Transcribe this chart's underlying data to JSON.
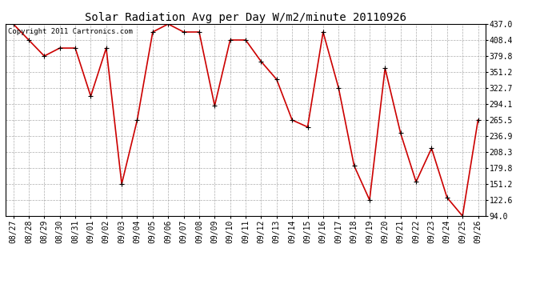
{
  "title": "Solar Radiation Avg per Day W/m2/minute 20110926",
  "copyright": "Copyright 2011 Cartronics.com",
  "labels": [
    "08/27",
    "08/28",
    "08/29",
    "08/30",
    "08/31",
    "09/01",
    "09/02",
    "09/03",
    "09/04",
    "09/05",
    "09/06",
    "09/07",
    "09/08",
    "09/09",
    "09/10",
    "09/11",
    "09/12",
    "09/13",
    "09/14",
    "09/15",
    "09/16",
    "09/17",
    "09/18",
    "09/19",
    "09/20",
    "09/21",
    "09/22",
    "09/23",
    "09/24",
    "09/25",
    "09/26"
  ],
  "values": [
    437.0,
    408.4,
    379.8,
    394.0,
    394.0,
    308.0,
    394.0,
    151.2,
    265.5,
    422.7,
    437.0,
    422.7,
    422.7,
    291.0,
    408.4,
    408.4,
    370.0,
    338.0,
    265.5,
    253.0,
    422.7,
    322.7,
    184.0,
    122.6,
    358.0,
    242.0,
    155.0,
    215.0,
    127.0,
    94.0,
    265.5
  ],
  "y_ticks": [
    94.0,
    122.6,
    151.2,
    179.8,
    208.3,
    236.9,
    265.5,
    294.1,
    322.7,
    351.2,
    379.8,
    408.4,
    437.0
  ],
  "line_color": "#cc0000",
  "marker": "+",
  "bg_color": "#ffffff",
  "grid_color": "#999999",
  "title_fontsize": 10,
  "tick_fontsize": 7,
  "copyright_fontsize": 6.5
}
